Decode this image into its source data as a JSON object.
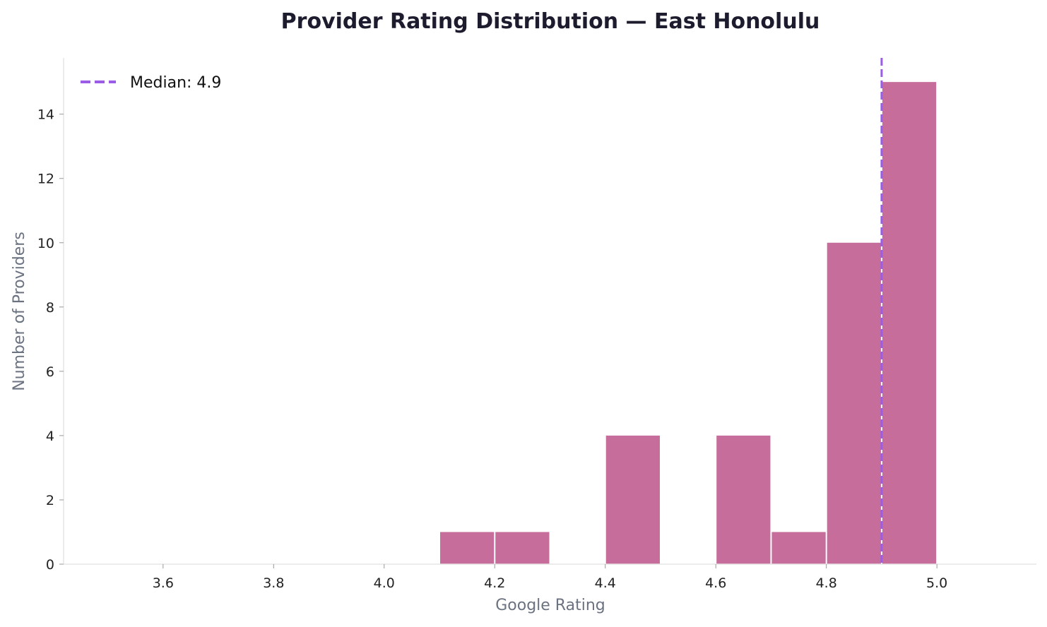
{
  "chart_data": {
    "type": "bar",
    "title": "Provider Rating Distribution — East Honolulu",
    "xlabel": "Google Rating",
    "ylabel": "Number of Providers",
    "xlim": [
      3.42,
      5.18
    ],
    "ylim": [
      0,
      15.75
    ],
    "xticks": [
      3.6,
      3.8,
      4.0,
      4.2,
      4.4,
      4.6,
      4.8,
      5.0
    ],
    "yticks": [
      0,
      2,
      4,
      6,
      8,
      10,
      12,
      14
    ],
    "bins": [
      {
        "start": 4.1,
        "end": 4.2,
        "count": 1
      },
      {
        "start": 4.2,
        "end": 4.3,
        "count": 1
      },
      {
        "start": 4.4,
        "end": 4.5,
        "count": 4
      },
      {
        "start": 4.6,
        "end": 4.7,
        "count": 4
      },
      {
        "start": 4.7,
        "end": 4.8,
        "count": 1
      },
      {
        "start": 4.8,
        "end": 4.9,
        "count": 10
      },
      {
        "start": 4.9,
        "end": 5.0,
        "count": 15
      }
    ],
    "median": 4.9,
    "legend": {
      "label": "Median: 4.9",
      "placement": "top-left"
    },
    "grid": false,
    "colors": {
      "bar": "#c66d9b",
      "median": "#9b5de5",
      "title": "#1c1c2e",
      "axis_label": "#6b7280"
    }
  }
}
